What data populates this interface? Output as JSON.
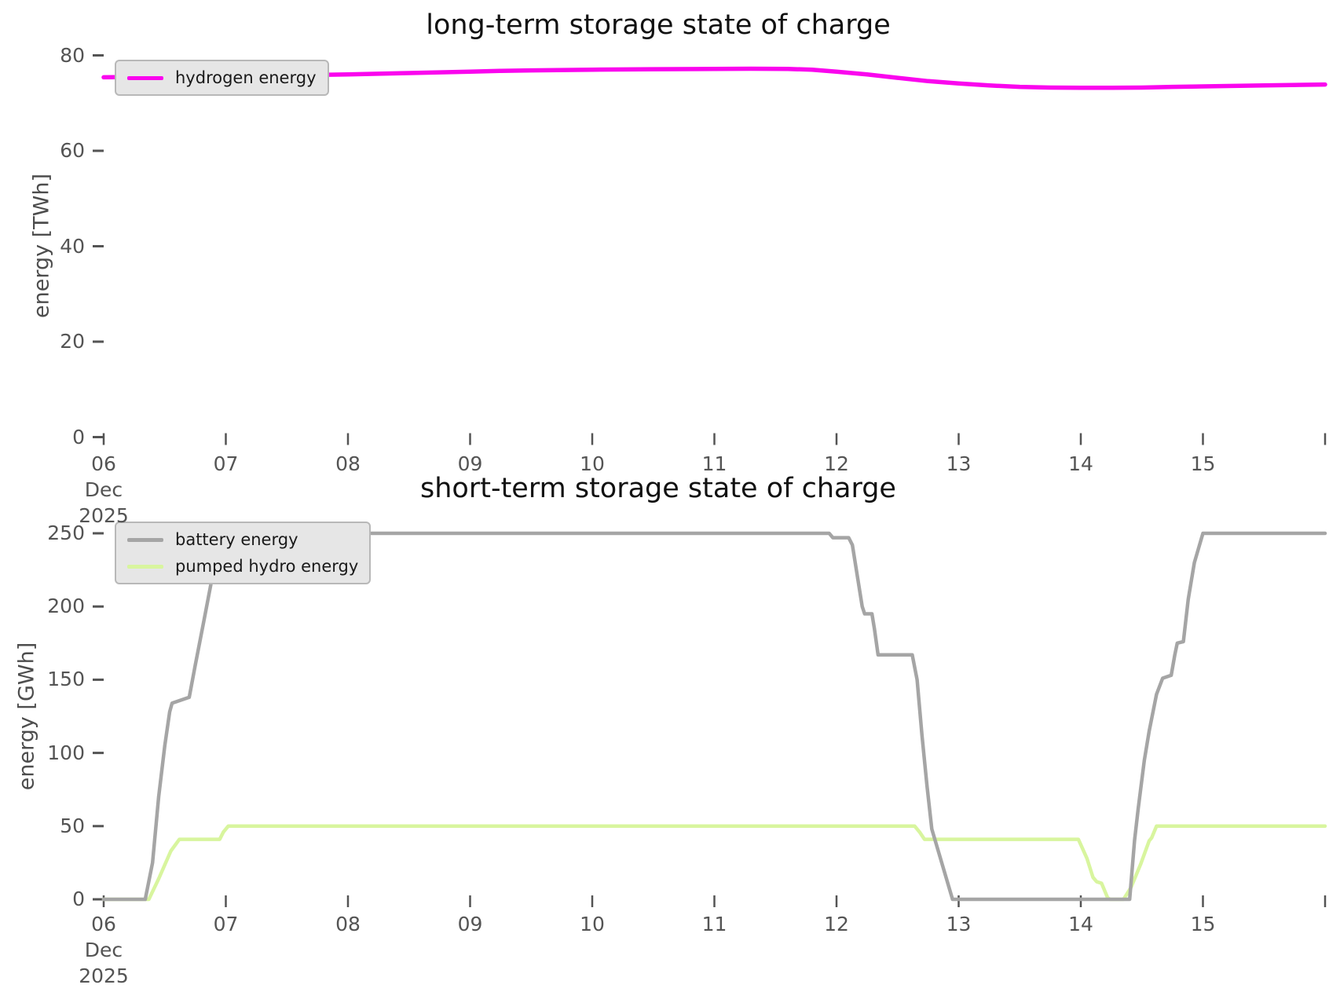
{
  "page": {
    "background": "#ffffff",
    "tick_text_color": "#545454",
    "axis_label_color": "#4d4d4d",
    "title_color": "#111111",
    "legend_background": "#e6e6e6",
    "legend_border": "#b8b8b8"
  },
  "chart_data": [
    {
      "type": "line",
      "title": "long-term storage state of charge",
      "ylabel": "energy [TWh]",
      "xlabel": "",
      "ylim": [
        0,
        80
      ],
      "yticks": [
        0,
        20,
        40,
        60,
        80
      ],
      "xlim_days": [
        6,
        16
      ],
      "xtick_days": [
        6,
        7,
        8,
        9,
        10,
        11,
        12,
        13,
        14,
        15,
        16
      ],
      "xtick_labels": [
        "06",
        "07",
        "08",
        "09",
        "10",
        "11",
        "12",
        "13",
        "14",
        "15",
        ""
      ],
      "x_first_tick_sublabels": [
        "Dec",
        "2025"
      ],
      "grid": false,
      "legend_position": "upper-left",
      "series": [
        {
          "name": "hydrogen energy",
          "color": "#fa05ee",
          "line_width": 5.5,
          "unit": "TWh",
          "x_days": [
            6.0,
            6.5,
            7.0,
            7.5,
            8.0,
            8.5,
            9.0,
            9.25,
            9.5,
            10.0,
            10.5,
            11.0,
            11.3,
            11.6,
            11.8,
            12.0,
            12.25,
            12.5,
            12.75,
            13.0,
            13.25,
            13.5,
            13.75,
            14.0,
            14.25,
            14.5,
            14.75,
            15.0,
            15.5,
            16.0
          ],
          "values": [
            75.4,
            75.5,
            75.6,
            75.8,
            76.0,
            76.3,
            76.6,
            76.75,
            76.85,
            77.0,
            77.1,
            77.15,
            77.2,
            77.15,
            77.0,
            76.6,
            76.0,
            75.3,
            74.6,
            74.1,
            73.7,
            73.4,
            73.25,
            73.2,
            73.2,
            73.25,
            73.4,
            73.5,
            73.7,
            73.9
          ]
        }
      ]
    },
    {
      "type": "line",
      "title": "short-term storage state of charge",
      "ylabel": "energy [GWh]",
      "xlabel": "",
      "ylim": [
        0,
        250
      ],
      "yticks": [
        0,
        50,
        100,
        150,
        200,
        250
      ],
      "xlim_days": [
        6,
        16
      ],
      "xtick_days": [
        6,
        7,
        8,
        9,
        10,
        11,
        12,
        13,
        14,
        15,
        16
      ],
      "xtick_labels": [
        "06",
        "07",
        "08",
        "09",
        "10",
        "11",
        "12",
        "13",
        "14",
        "15",
        ""
      ],
      "x_first_tick_sublabels": [
        "Dec",
        "2025"
      ],
      "grid": false,
      "legend_position": "upper-left",
      "series": [
        {
          "name": "pumped hydro energy",
          "color": "#d8f59e",
          "line_width": 4.5,
          "unit": "GWh",
          "legend_order": 2,
          "x_days": [
            6.0,
            6.37,
            6.45,
            6.55,
            6.62,
            6.95,
            6.98,
            7.02,
            12.64,
            12.68,
            12.72,
            13.98,
            14.05,
            14.1,
            14.13,
            14.17,
            14.22,
            14.24,
            14.35,
            14.41,
            14.49,
            14.56,
            14.58,
            14.62,
            16.0
          ],
          "values": [
            0,
            0,
            14,
            33,
            41,
            41,
            46,
            50,
            50,
            46,
            41,
            41,
            28,
            15,
            12,
            11,
            1,
            0,
            0,
            8,
            24,
            40,
            42,
            50,
            50
          ]
        },
        {
          "name": "battery energy",
          "color": "#a5a5a5",
          "line_width": 4.5,
          "unit": "GWh",
          "legend_order": 1,
          "x_days": [
            6.0,
            6.34,
            6.4,
            6.45,
            6.5,
            6.54,
            6.56,
            6.7,
            6.75,
            6.82,
            6.9,
            6.97,
            11.94,
            11.97,
            12.1,
            12.13,
            12.21,
            12.23,
            12.29,
            12.31,
            12.34,
            12.62,
            12.66,
            12.7,
            12.74,
            12.78,
            12.95,
            14.4,
            14.44,
            14.47,
            14.52,
            14.56,
            14.62,
            14.67,
            14.74,
            14.77,
            14.79,
            14.84,
            14.88,
            14.93,
            15.0,
            16.0
          ],
          "values": [
            0,
            0,
            25,
            70,
            105,
            128,
            134,
            138,
            160,
            190,
            225,
            250,
            250,
            247,
            247,
            242,
            200,
            195,
            195,
            185,
            167,
            167,
            150,
            112,
            78,
            48,
            0,
            0,
            40,
            62,
            95,
            115,
            140,
            151,
            153,
            167,
            175,
            176,
            205,
            230,
            250,
            250
          ]
        }
      ]
    }
  ]
}
